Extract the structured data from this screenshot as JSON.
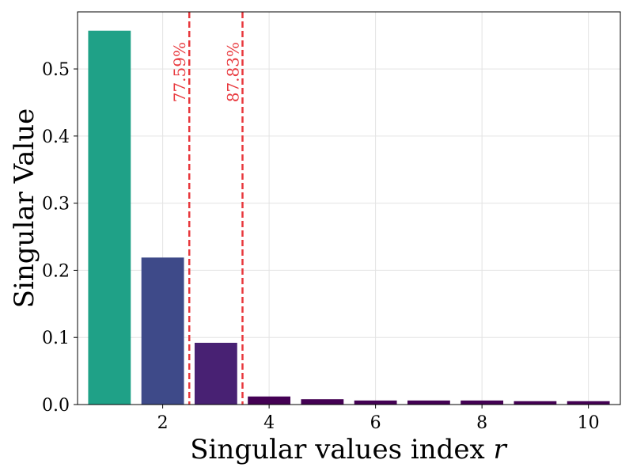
{
  "chart_data": {
    "type": "bar",
    "title": "",
    "xlabel": "Singular values index",
    "xlabel_var": "r",
    "ylabel": "Singular Value",
    "categories": [
      1,
      2,
      3,
      4,
      5,
      6,
      7,
      8,
      9,
      10
    ],
    "values": [
      0.557,
      0.219,
      0.092,
      0.012,
      0.008,
      0.006,
      0.006,
      0.006,
      0.005,
      0.005
    ],
    "bar_colors": [
      "#1fa187",
      "#3e4a89",
      "#482173",
      "#440154",
      "#440154",
      "#440154",
      "#440154",
      "#440154",
      "#440154",
      "#440154"
    ],
    "xlim": [
      0.4,
      10.6
    ],
    "ylim": [
      0,
      0.585
    ],
    "x_ticks": [
      2,
      4,
      6,
      8,
      10
    ],
    "x_tick_labels": [
      "2",
      "4",
      "6",
      "8",
      "10"
    ],
    "y_ticks": [
      0,
      0.1,
      0.2,
      0.3,
      0.4,
      0.5
    ],
    "y_tick_labels": [
      "0.0",
      "0.1",
      "0.2",
      "0.3",
      "0.4",
      "0.5"
    ],
    "grid": true,
    "vlines": [
      {
        "x": 2.5,
        "label": "77.59%",
        "color": "#e8383d"
      },
      {
        "x": 3.5,
        "label": "87.83%",
        "color": "#e8383d"
      }
    ]
  }
}
